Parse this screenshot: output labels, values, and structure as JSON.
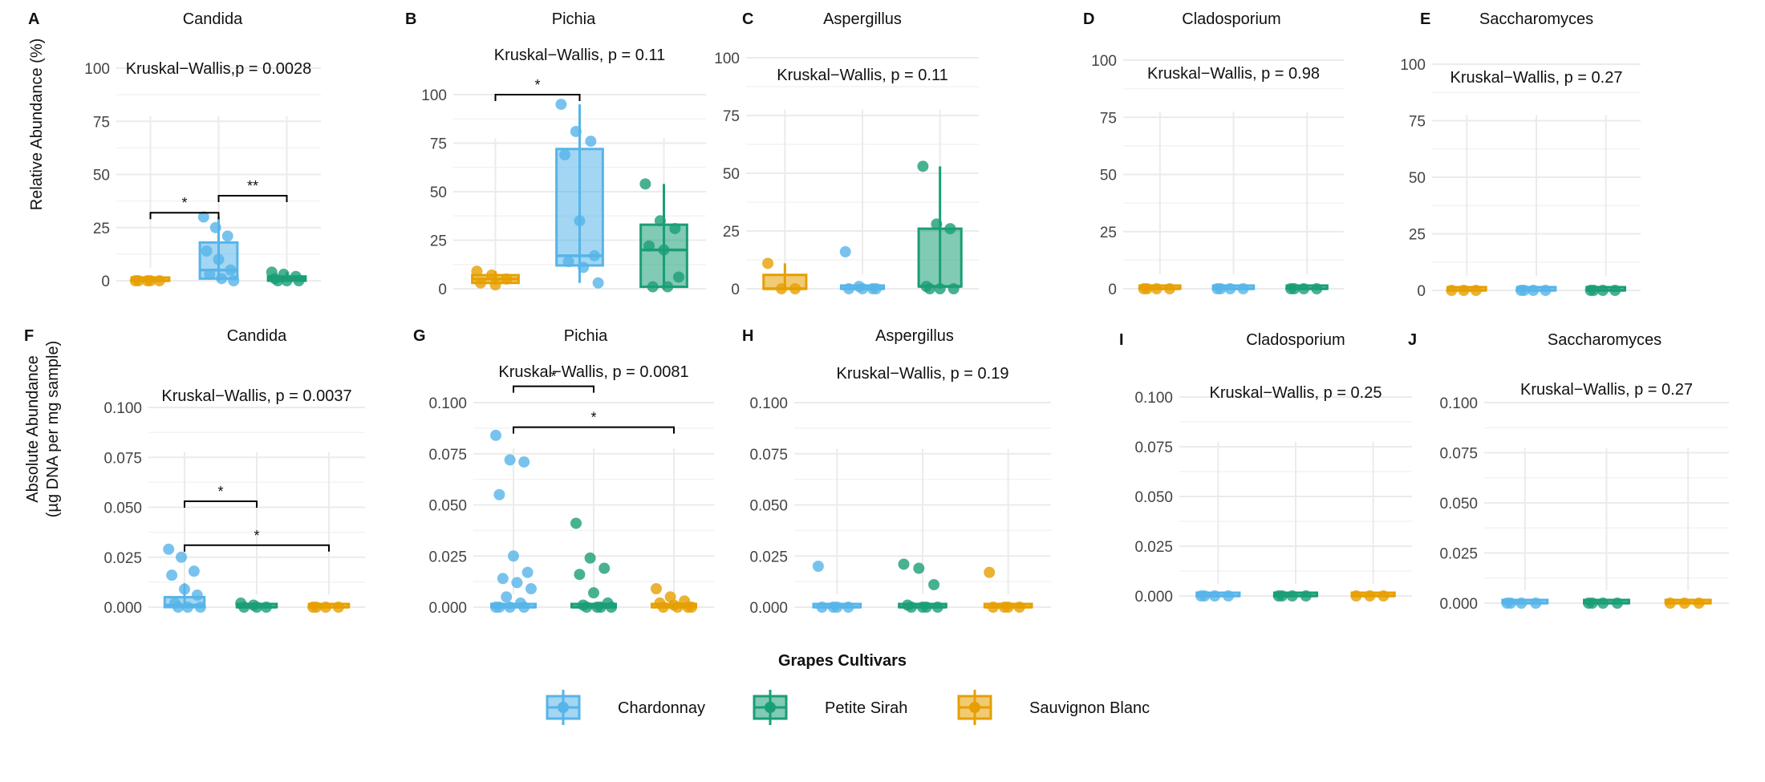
{
  "legend": {
    "title": "Grapes Cultivars",
    "position": "bottom",
    "entries": [
      {
        "name": "Chardonnay",
        "color": "#56B4E9"
      },
      {
        "name": "Petite Sirah",
        "color": "#1A9E77"
      },
      {
        "name": "Sauvignon Blanc",
        "color": "#E69F00"
      }
    ]
  },
  "y_labels": {
    "top": "Relative Abundance (%)",
    "bottom_line1": "Absolute Abundance",
    "bottom_line2": "(µg DNA per mg sample)"
  },
  "chart_data": [
    {
      "type": "box",
      "label": "A",
      "title": "Candida",
      "stat": "Kruskal−Wallis,p  = 0.0028",
      "ylim": [
        -5,
        110
      ],
      "yticks": [
        0,
        25,
        50,
        75,
        100
      ],
      "tick_labels": [
        "0",
        "25",
        "50",
        "75",
        "100"
      ],
      "groups": [
        {
          "name": "Sauvignon Blanc",
          "q1": 0,
          "median": 0,
          "q3": 0.5,
          "whisker_low": 0,
          "whisker_high": 0.5,
          "points": [
            0,
            0,
            0,
            0,
            0
          ]
        },
        {
          "name": "Chardonnay",
          "q1": 1,
          "median": 5,
          "q3": 18,
          "whisker_low": 0,
          "whisker_high": 30,
          "points": [
            30,
            25,
            21,
            14,
            10,
            5,
            3,
            1,
            0
          ]
        },
        {
          "name": "Petite Sirah",
          "q1": 0,
          "median": 1,
          "q3": 2,
          "whisker_low": 0,
          "whisker_high": 4,
          "points": [
            4,
            3,
            2,
            1,
            0,
            0,
            0
          ]
        }
      ],
      "brackets": [
        {
          "from": 0,
          "to": 1,
          "y": 32,
          "label": "*"
        },
        {
          "from": 1,
          "to": 2,
          "y": 40,
          "label": "**"
        }
      ]
    },
    {
      "type": "box",
      "label": "B",
      "title": "Pichia",
      "stat": "Kruskal−Wallis, p = 0.11",
      "ylim": [
        -5,
        125
      ],
      "yticks": [
        0,
        25,
        50,
        75,
        100
      ],
      "tick_labels": [
        "0",
        "25",
        "50",
        "75",
        "100"
      ],
      "groups": [
        {
          "name": "Sauvignon Blanc",
          "q1": 3,
          "median": 5,
          "q3": 7,
          "whisker_low": 2,
          "whisker_high": 9,
          "points": [
            9,
            7,
            5,
            3,
            2
          ]
        },
        {
          "name": "Chardonnay",
          "q1": 12,
          "median": 17,
          "q3": 72,
          "whisker_low": 3,
          "whisker_high": 95,
          "points": [
            95,
            81,
            76,
            69,
            35,
            17,
            14,
            11,
            3
          ]
        },
        {
          "name": "Petite Sirah",
          "q1": 1,
          "median": 20,
          "q3": 33,
          "whisker_low": 0,
          "whisker_high": 54,
          "points": [
            54,
            35,
            31,
            22,
            20,
            6,
            1,
            1
          ]
        }
      ],
      "brackets": [
        {
          "from": 0,
          "to": 1,
          "y": 100,
          "label": "*"
        }
      ]
    },
    {
      "type": "box",
      "label": "C",
      "title": "Aspergillus",
      "stat": "Kruskal−Wallis, p = 0.11",
      "ylim": [
        -5,
        110
      ],
      "yticks": [
        0,
        25,
        50,
        75,
        100
      ],
      "tick_labels": [
        "0",
        "25",
        "50",
        "75",
        "100"
      ],
      "groups": [
        {
          "name": "Sauvignon Blanc",
          "q1": 0,
          "median": 0,
          "q3": 6,
          "whisker_low": 0,
          "whisker_high": 11,
          "points": [
            11,
            0,
            0
          ]
        },
        {
          "name": "Chardonnay",
          "q1": 0,
          "median": 0,
          "q3": 1,
          "whisker_low": 0,
          "whisker_high": 1,
          "points": [
            16,
            1,
            0,
            0,
            0,
            0
          ]
        },
        {
          "name": "Petite Sirah",
          "q1": 1,
          "median": 1,
          "q3": 26,
          "whisker_low": 0,
          "whisker_high": 53,
          "points": [
            53,
            28,
            26,
            1,
            0,
            0,
            0
          ]
        }
      ],
      "brackets": []
    },
    {
      "type": "box",
      "label": "D",
      "title": "Cladosporium",
      "stat": "Kruskal−Wallis, p = 0.98",
      "ylim": [
        -5,
        110
      ],
      "yticks": [
        0,
        25,
        50,
        75,
        100
      ],
      "tick_labels": [
        "0",
        "25",
        "50",
        "75",
        "100"
      ],
      "groups": [
        {
          "name": "Sauvignon Blanc",
          "q1": 0,
          "median": 0,
          "q3": 0.3,
          "whisker_low": 0,
          "whisker_high": 0.3,
          "points": [
            0,
            0,
            0,
            0
          ]
        },
        {
          "name": "Chardonnay",
          "q1": 0,
          "median": 0,
          "q3": 0.3,
          "whisker_low": 0,
          "whisker_high": 0.3,
          "points": [
            0,
            0,
            0,
            0
          ]
        },
        {
          "name": "Petite Sirah",
          "q1": 0,
          "median": 0,
          "q3": 0.3,
          "whisker_low": 0,
          "whisker_high": 0.3,
          "points": [
            0,
            0,
            0,
            0
          ]
        }
      ],
      "brackets": []
    },
    {
      "type": "box",
      "label": "E",
      "title": "Saccharomyces",
      "stat": "Kruskal−Wallis, p = 0.27",
      "ylim": [
        -5,
        110
      ],
      "yticks": [
        0,
        25,
        50,
        75,
        100
      ],
      "tick_labels": [
        "0",
        "25",
        "50",
        "75",
        "100"
      ],
      "groups": [
        {
          "name": "Sauvignon Blanc",
          "q1": 0,
          "median": 0,
          "q3": 0.3,
          "whisker_low": 0,
          "whisker_high": 0.3,
          "points": [
            0,
            0,
            0
          ]
        },
        {
          "name": "Chardonnay",
          "q1": 0,
          "median": 0,
          "q3": 0.3,
          "whisker_low": 0,
          "whisker_high": 0.3,
          "points": [
            0,
            0,
            0,
            0
          ]
        },
        {
          "name": "Petite Sirah",
          "q1": 0,
          "median": 0,
          "q3": 0.3,
          "whisker_low": 0,
          "whisker_high": 0.3,
          "points": [
            0,
            0,
            0,
            0
          ]
        }
      ],
      "brackets": []
    },
    {
      "type": "box",
      "label": "F",
      "title": "Candida",
      "stat": "Kruskal−Wallis, p = 0.0037",
      "ylim": [
        -0.005,
        0.12
      ],
      "yticks": [
        0,
        0.025,
        0.05,
        0.075,
        0.1
      ],
      "tick_labels": [
        "0.000",
        "0.025",
        "0.050",
        "0.075",
        "0.100"
      ],
      "groups": [
        {
          "name": "Chardonnay",
          "q1": 0,
          "median": 0.001,
          "q3": 0.005,
          "whisker_low": 0,
          "whisker_high": 0.012,
          "points": [
            0.029,
            0.025,
            0.018,
            0.016,
            0.009,
            0.006,
            0.002,
            0,
            0,
            0
          ]
        },
        {
          "name": "Petite Sirah",
          "q1": 0,
          "median": 0,
          "q3": 0.0005,
          "whisker_low": 0,
          "whisker_high": 0.0005,
          "points": [
            0.002,
            0.001,
            0,
            0,
            0
          ]
        },
        {
          "name": "Sauvignon Blanc",
          "q1": 0,
          "median": 0,
          "q3": 0.0005,
          "whisker_low": 0,
          "whisker_high": 0.0005,
          "points": [
            0,
            0,
            0,
            0
          ]
        }
      ],
      "brackets": [
        {
          "from": 0,
          "to": 1,
          "y": 0.053,
          "label": "*"
        },
        {
          "from": 0,
          "to": 2,
          "y": 0.031,
          "label": "*"
        }
      ]
    },
    {
      "type": "box",
      "label": "G",
      "title": "Pichia",
      "stat": "Kruskal−Wallis, p = 0.0081",
      "ylim": [
        -0.005,
        0.12
      ],
      "yticks": [
        0,
        0.025,
        0.05,
        0.075,
        0.1
      ],
      "tick_labels": [
        "0.000",
        "0.025",
        "0.050",
        "0.075",
        "0.100"
      ],
      "groups": [
        {
          "name": "Chardonnay",
          "q1": 0,
          "median": 0,
          "q3": 0.0005,
          "whisker_low": 0,
          "whisker_high": 0.0005,
          "points": [
            0.084,
            0.072,
            0.071,
            0.055,
            0.025,
            0.017,
            0.014,
            0.012,
            0.009,
            0.005,
            0.002,
            0,
            0,
            0,
            0
          ]
        },
        {
          "name": "Petite Sirah",
          "q1": 0,
          "median": 0,
          "q3": 0.0005,
          "whisker_low": 0,
          "whisker_high": 0.0005,
          "points": [
            0.041,
            0.024,
            0.019,
            0.016,
            0.007,
            0.002,
            0.001,
            0,
            0,
            0,
            0
          ]
        },
        {
          "name": "Sauvignon Blanc",
          "q1": 0,
          "median": 0,
          "q3": 0.0005,
          "whisker_low": 0,
          "whisker_high": 0.0005,
          "points": [
            0.009,
            0.005,
            0.003,
            0.002,
            0.001,
            0,
            0,
            0,
            0
          ]
        }
      ],
      "brackets": [
        {
          "from": 0,
          "to": 1,
          "y": 0.108,
          "label": "*"
        },
        {
          "from": 0,
          "to": 2,
          "y": 0.088,
          "label": "*"
        }
      ]
    },
    {
      "type": "box",
      "label": "H",
      "title": "Aspergillus",
      "stat": "Kruskal−Wallis, p =  0.19",
      "ylim": [
        -0.005,
        0.12
      ],
      "yticks": [
        0,
        0.025,
        0.05,
        0.075,
        0.1
      ],
      "tick_labels": [
        "0.000",
        "0.025",
        "0.050",
        "0.075",
        "0.100"
      ],
      "groups": [
        {
          "name": "Chardonnay",
          "q1": 0,
          "median": 0,
          "q3": 0.0005,
          "whisker_low": 0,
          "whisker_high": 0.0005,
          "points": [
            0.02,
            0,
            0,
            0,
            0
          ]
        },
        {
          "name": "Petite Sirah",
          "q1": 0,
          "median": 0,
          "q3": 0.0005,
          "whisker_low": 0,
          "whisker_high": 0.0005,
          "points": [
            0.021,
            0.019,
            0.011,
            0.001,
            0,
            0,
            0,
            0
          ]
        },
        {
          "name": "Sauvignon Blanc",
          "q1": 0,
          "median": 0,
          "q3": 0.0005,
          "whisker_low": 0,
          "whisker_high": 0.0005,
          "points": [
            0.017,
            0,
            0,
            0,
            0
          ]
        }
      ],
      "brackets": []
    },
    {
      "type": "box",
      "label": "I",
      "title": "Cladosporium",
      "stat": "Kruskal−Wallis, p =  0.25",
      "ylim": [
        -0.005,
        0.12
      ],
      "yticks": [
        0,
        0.025,
        0.05,
        0.075,
        0.1
      ],
      "tick_labels": [
        "0.000",
        "0.025",
        "0.050",
        "0.075",
        "0.100"
      ],
      "groups": [
        {
          "name": "Chardonnay",
          "q1": 0,
          "median": 0,
          "q3": 0.0005,
          "whisker_low": 0,
          "whisker_high": 0.0005,
          "points": [
            0,
            0,
            0,
            0
          ]
        },
        {
          "name": "Petite Sirah",
          "q1": 0,
          "median": 0,
          "q3": 0.0005,
          "whisker_low": 0,
          "whisker_high": 0.0005,
          "points": [
            0,
            0,
            0,
            0
          ]
        },
        {
          "name": "Sauvignon Blanc",
          "q1": 0,
          "median": 0,
          "q3": 0.0005,
          "whisker_low": 0,
          "whisker_high": 0.0005,
          "points": [
            0,
            0,
            0
          ]
        }
      ],
      "brackets": []
    },
    {
      "type": "box",
      "label": "J",
      "title": "Saccharomyces",
      "stat": "Kruskal−Wallis, p =  0.27",
      "ylim": [
        -0.005,
        0.12
      ],
      "yticks": [
        0,
        0.025,
        0.05,
        0.075,
        0.1
      ],
      "tick_labels": [
        "0.000",
        "0.025",
        "0.050",
        "0.075",
        "0.100"
      ],
      "groups": [
        {
          "name": "Chardonnay",
          "q1": 0,
          "median": 0,
          "q3": 0.0005,
          "whisker_low": 0,
          "whisker_high": 0.0005,
          "points": [
            0,
            0,
            0,
            0
          ]
        },
        {
          "name": "Petite Sirah",
          "q1": 0,
          "median": 0,
          "q3": 0.0005,
          "whisker_low": 0,
          "whisker_high": 0.0005,
          "points": [
            0,
            0,
            0,
            0
          ]
        },
        {
          "name": "Sauvignon Blanc",
          "q1": 0,
          "median": 0,
          "q3": 0.0005,
          "whisker_low": 0,
          "whisker_high": 0.0005,
          "points": [
            0,
            0,
            0
          ]
        }
      ],
      "brackets": []
    }
  ]
}
